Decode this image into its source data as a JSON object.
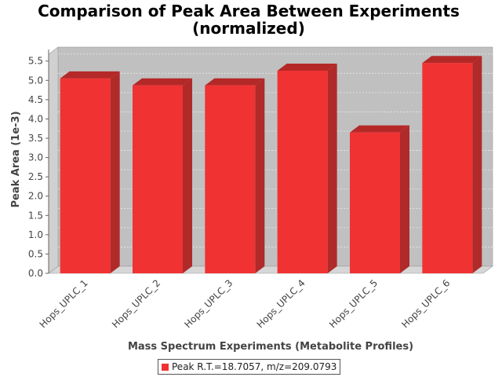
{
  "chart_data": {
    "type": "bar",
    "title_line1": "Comparison of Peak Area Between Experiments",
    "title_line2": "(normalized)",
    "xlabel": "Mass Spectrum Experiments (Metabolite Profiles)",
    "ylabel": "Peak Area (1e-3)",
    "categories": [
      "Hops_UPLC_1",
      "Hops_UPLC_2",
      "Hops_UPLC_3",
      "Hops_UPLC_4",
      "Hops_UPLC_5",
      "Hops_UPLC_6"
    ],
    "series": [
      {
        "name": "Peak R.T.=18.7057, m/z=209.0793",
        "values": [
          5.05,
          4.87,
          4.87,
          5.25,
          3.65,
          5.45
        ]
      }
    ],
    "yticks": [
      "0.0",
      "0.5",
      "1.0",
      "1.5",
      "2.0",
      "2.5",
      "3.0",
      "3.5",
      "4.0",
      "4.5",
      "5.0",
      "5.5"
    ],
    "ylim": [
      0,
      5.8
    ],
    "grid": true,
    "legend_position": "bottom",
    "colors": {
      "bar_front": "#f03232",
      "bar_top": "#b52828",
      "bar_side": "#b02a2a",
      "plot_back": "#c0c0c0",
      "plot_floor": "#d6d6d6",
      "grid": "#e8e8e8"
    }
  }
}
